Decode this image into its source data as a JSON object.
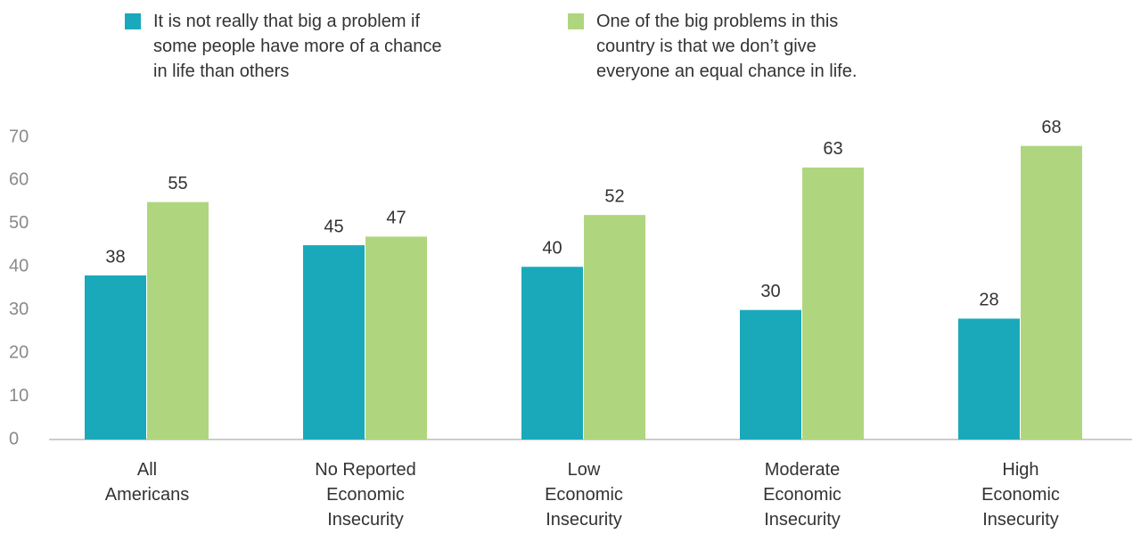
{
  "chart_data": {
    "type": "bar",
    "categories": [
      "All\nAmericans",
      "No Reported\nEconomic\nInsecurity",
      "Low\nEconomic\nInsecurity",
      "Moderate\nEconomic\nInsecurity",
      "High\nEconomic\nInsecurity"
    ],
    "series": [
      {
        "name": "It is not really that big a problem if\nsome people have more of a chance\nin life than others",
        "color": "#1aa9ba",
        "values": [
          38,
          45,
          40,
          30,
          28
        ]
      },
      {
        "name": "One of the big problems in this\ncountry is that we don’t give\neveryone an equal chance in life.",
        "color": "#afd67e",
        "values": [
          55,
          47,
          52,
          63,
          68
        ]
      }
    ],
    "ylim": [
      0,
      70
    ],
    "yticks": [
      0,
      10,
      20,
      30,
      40,
      50,
      60,
      70
    ]
  }
}
